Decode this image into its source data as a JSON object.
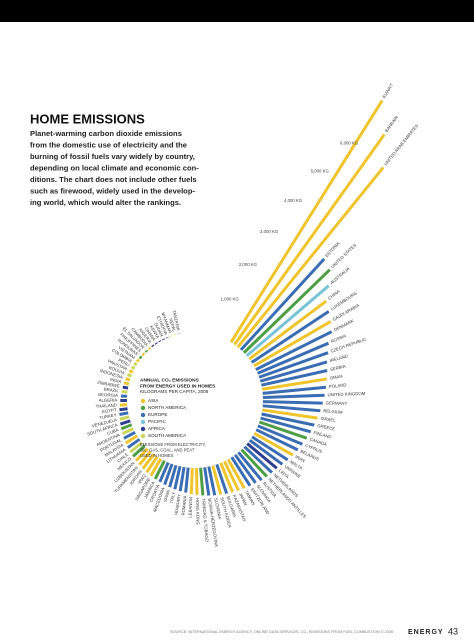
{
  "header": {
    "title": "HOME EMISSIONS",
    "description": [
      "Planet-warming carbon dioxide emissions",
      "from the domestic use of electricity and the",
      "burning of fossil fuels vary widely by country,",
      "depending on local climate and economic con-",
      "ditions. The chart does not include other fuels",
      "such as firewood, widely used in the develop-",
      "ing world, which would alter the rankings."
    ]
  },
  "chart_data": {
    "type": "radial_bar",
    "legend_title": [
      "ANNUAL CO₂ EMISSIONS",
      "FROM ENERGY USED IN HOMES"
    ],
    "legend_subtitle": "KILOGRAMS PER CAPITA, 2006",
    "legend_note": [
      "EMISSIONS FROM ELECTRICITY,",
      "OIL, GAS, COAL, AND PEAT",
      "USED IN HOMES"
    ],
    "regions": [
      {
        "name": "ASIA",
        "color": "#efc42c"
      },
      {
        "name": "NORTH AMERICA",
        "color": "#4e9e46"
      },
      {
        "name": "EUROPE",
        "color": "#3a6db3"
      },
      {
        "name": "PACIFIC",
        "color": "#79c3d6"
      },
      {
        "name": "AFRICA",
        "color": "#2f3f8f"
      },
      {
        "name": "SOUTH AMERICA",
        "color": "#c9d65a"
      }
    ],
    "categories": [
      "KUWAIT",
      "BAHRAIN",
      "UNITED ARAB EMIRATES",
      "ESTONIA",
      "UNITED STATES",
      "AUSTRALIA",
      "CHINA",
      "LUXEMBOURG",
      "SAUDI ARABIA",
      "DENMARK",
      "RUSSIA",
      "CZECH REPUBLIC",
      "IRELAND",
      "SERBIA",
      "OMAN",
      "POLAND",
      "UNITED KINGDOM",
      "GERMANY",
      "BELGIUM",
      "ISRAEL",
      "GREECE",
      "FINLAND",
      "CANADA",
      "CYPRUS",
      "BELARUS",
      "IRAN",
      "MALTA",
      "UKRAINE",
      "LIBYA",
      "NETHERLANDS",
      "NETHERLANDS ANTILLES",
      "AUSTRIA",
      "SLOVAKIA",
      "SWITZERLAND",
      "TAIWAN",
      "JAPAN",
      "KAZAKHSTAN",
      "BULGARIA",
      "SOUTH KOREA",
      "SLOVENIA",
      "BOSNIA-HERZEGOVINA",
      "TRINIDAD & TOBAGO",
      "HONG KONG",
      "LEBANON",
      "ROMANIA",
      "HUNGARY",
      "ITALY",
      "SPAIN",
      "MACEDONIA",
      "CROATIA",
      "JAMAICA",
      "SINGAPORE",
      "IRAQ",
      "JORDAN",
      "TURKMENISTAN",
      "UZBEKISTAN",
      "MEXICO",
      "CHILE",
      "LITHUANIA",
      "MALAYSIA",
      "PORTUGAL",
      "ARGENTINA",
      "CUBA",
      "SOUTH AFRICA",
      "VENEZUELA",
      "TURKEY",
      "EGYPT",
      "THAILAND",
      "ALGERIA",
      "GEORGIA",
      "BRAZIL",
      "ZIMBABWE",
      "INDIA",
      "INDONESIA",
      "BOLIVIA",
      "PAKISTAN",
      "PERU",
      "COLOMBIA",
      "VIETNAM",
      "HONDURAS",
      "PHILIPPINES",
      "EL SALVADOR",
      "CAMBODIA",
      "NIGERIA",
      "GHANA",
      "KENYA",
      "SUDAN",
      "ETHIOPIA",
      "MYANMAR",
      "NEPAL",
      "TANZANIA"
    ],
    "category_regions": [
      0,
      0,
      0,
      2,
      1,
      3,
      0,
      2,
      0,
      2,
      2,
      2,
      2,
      2,
      0,
      2,
      2,
      2,
      2,
      0,
      2,
      2,
      1,
      2,
      2,
      0,
      2,
      2,
      4,
      2,
      1,
      2,
      2,
      2,
      0,
      0,
      0,
      2,
      0,
      2,
      2,
      1,
      0,
      0,
      2,
      2,
      2,
      2,
      2,
      2,
      1,
      0,
      0,
      0,
      0,
      0,
      1,
      5,
      2,
      0,
      2,
      5,
      1,
      4,
      5,
      2,
      4,
      0,
      4,
      2,
      5,
      4,
      0,
      0,
      5,
      0,
      5,
      5,
      0,
      1,
      0,
      1,
      0,
      4,
      4,
      4,
      4,
      4,
      0,
      0,
      4
    ],
    "values": [
      7400,
      6700,
      6000,
      3200,
      3100,
      2800,
      2500,
      2400,
      2300,
      2200,
      2000,
      1900,
      1800,
      1750,
      1700,
      1650,
      1600,
      1550,
      1500,
      1450,
      1400,
      1350,
      1300,
      1250,
      1200,
      1150,
      1100,
      1050,
      1000,
      980,
      960,
      940,
      900,
      880,
      860,
      840,
      820,
      800,
      780,
      760,
      740,
      720,
      700,
      680,
      650,
      630,
      610,
      590,
      570,
      550,
      530,
      510,
      490,
      470,
      450,
      430,
      410,
      390,
      370,
      350,
      330,
      310,
      290,
      270,
      250,
      230,
      210,
      190,
      175,
      160,
      150,
      140,
      130,
      120,
      110,
      100,
      90,
      80,
      70,
      60,
      50,
      45,
      40,
      35,
      30,
      25,
      20,
      15,
      12,
      10,
      8
    ],
    "rlim": [
      0,
      7500
    ],
    "rticks": [
      {
        "value": 1000,
        "label": "1,000 KG"
      },
      {
        "value": 2000,
        "label": "2,000 KG"
      },
      {
        "value": 3000,
        "label": "3,000 KG"
      },
      {
        "value": 4000,
        "label": "4,000 KG"
      },
      {
        "value": 5000,
        "label": "5,000 KG"
      },
      {
        "value": 6000,
        "label": "6,000 KG"
      }
    ]
  },
  "footer": {
    "source": "SOURCE: INTERNATIONAL ENERGY AGENCY, ONLINE DATA SERVICES, CO₂ EMISSIONS FROM FUEL COMBUSTION © 2008",
    "section": "ENERGY",
    "page": "43"
  }
}
